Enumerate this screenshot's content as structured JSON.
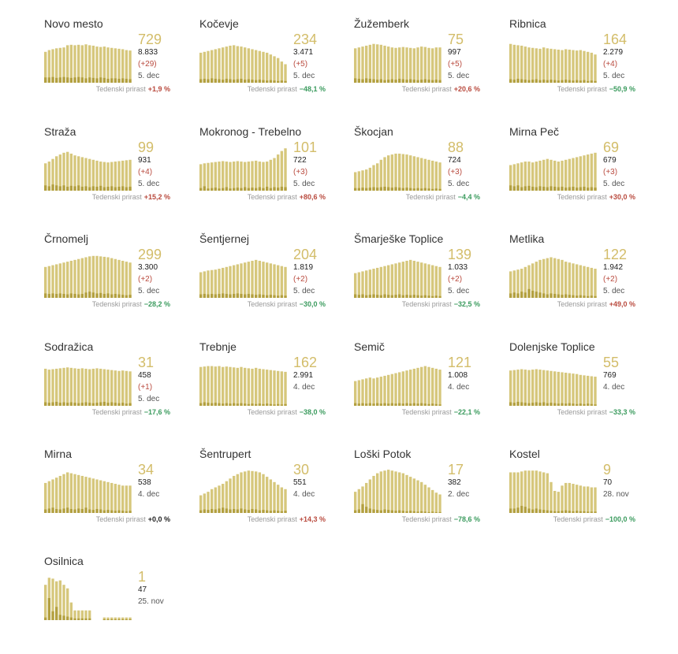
{
  "growth_label": "Tedenski prirast",
  "colors": {
    "bar": "#d6c77c",
    "bar_dark": "#b3a040",
    "number": "#d3bd6a",
    "up": "#b94a3e",
    "down": "#3b9b5e"
  },
  "chart_data": [
    {
      "type": "bar",
      "title": "Novo mesto",
      "active": "729",
      "total": "8.833",
      "delta": "(+29)",
      "date": "5. dec",
      "growth": "+1,9 %",
      "trend": "up",
      "values": [
        70,
        74,
        76,
        78,
        79,
        80,
        85,
        86,
        85,
        86,
        85,
        87,
        85,
        84,
        82,
        81,
        82,
        80,
        79,
        78,
        77,
        76,
        74,
        73
      ],
      "new": [
        12,
        12,
        13,
        11,
        12,
        13,
        12,
        11,
        12,
        13,
        12,
        10,
        12,
        11,
        10,
        12,
        11,
        9,
        10,
        10,
        9,
        10,
        9,
        8
      ]
    },
    {
      "type": "bar",
      "title": "Kočevje",
      "active": "234",
      "total": "3.471",
      "delta": "(+5)",
      "date": "5. dec",
      "growth": "−48,1 %",
      "trend": "down",
      "values": [
        68,
        70,
        72,
        74,
        76,
        78,
        80,
        82,
        84,
        85,
        83,
        82,
        80,
        78,
        76,
        74,
        72,
        70,
        68,
        64,
        60,
        56,
        48,
        42
      ],
      "new": [
        8,
        9,
        8,
        10,
        9,
        8,
        7,
        9,
        8,
        7,
        8,
        9,
        7,
        8,
        7,
        6,
        7,
        6,
        5,
        6,
        5,
        4,
        5,
        4
      ]
    },
    {
      "type": "bar",
      "title": "Žužemberk",
      "active": "75",
      "total": "997",
      "delta": "(+5)",
      "date": "5. dec",
      "growth": "+20,6 %",
      "trend": "up",
      "values": [
        78,
        80,
        82,
        84,
        86,
        88,
        87,
        86,
        84,
        82,
        80,
        79,
        80,
        81,
        80,
        79,
        78,
        80,
        82,
        81,
        79,
        78,
        80,
        80
      ],
      "new": [
        10,
        9,
        8,
        10,
        9,
        8,
        7,
        8,
        6,
        7,
        8,
        7,
        9,
        8,
        7,
        8,
        7,
        6,
        7,
        8,
        7,
        6,
        7,
        6
      ]
    },
    {
      "type": "bar",
      "title": "Ribnica",
      "active": "164",
      "total": "2.279",
      "delta": "(+4)",
      "date": "5. dec",
      "growth": "−50,9 %",
      "trend": "down",
      "values": [
        88,
        86,
        85,
        84,
        82,
        80,
        79,
        78,
        77,
        80,
        78,
        77,
        76,
        75,
        74,
        76,
        75,
        74,
        73,
        74,
        72,
        70,
        68,
        64
      ],
      "new": [
        8,
        7,
        9,
        8,
        7,
        6,
        7,
        8,
        6,
        7,
        6,
        7,
        6,
        5,
        6,
        7,
        6,
        5,
        6,
        5,
        6,
        4,
        5,
        4
      ]
    },
    {
      "type": "bar",
      "title": "Straža",
      "active": "99",
      "total": "931",
      "delta": "(+4)",
      "date": "5. dec",
      "growth": "+15,2 %",
      "trend": "up",
      "values": [
        62,
        66,
        72,
        78,
        82,
        86,
        88,
        84,
        80,
        78,
        76,
        74,
        72,
        70,
        68,
        66,
        65,
        64,
        65,
        66,
        67,
        68,
        69,
        70
      ],
      "new": [
        12,
        10,
        14,
        12,
        10,
        12,
        9,
        11,
        10,
        12,
        9,
        10,
        8,
        10,
        9,
        11,
        8,
        9,
        10,
        8,
        9,
        10,
        8,
        9
      ]
    },
    {
      "type": "bar",
      "title": "Mokronog - Trebelno",
      "active": "101",
      "total": "722",
      "delta": "(+3)",
      "date": "5. dec",
      "growth": "+80,6 %",
      "trend": "up",
      "values": [
        60,
        62,
        63,
        64,
        65,
        66,
        67,
        66,
        65,
        66,
        67,
        66,
        65,
        66,
        67,
        68,
        66,
        65,
        66,
        70,
        74,
        82,
        90,
        96
      ],
      "new": [
        6,
        10,
        5,
        6,
        7,
        5,
        6,
        8,
        5,
        6,
        7,
        6,
        8,
        6,
        7,
        6,
        8,
        6,
        9,
        6,
        8,
        7,
        9,
        8
      ]
    },
    {
      "type": "bar",
      "title": "Škocjan",
      "active": "88",
      "total": "724",
      "delta": "(+3)",
      "date": "5. dec",
      "growth": "−4,4 %",
      "trend": "down",
      "values": [
        42,
        44,
        46,
        48,
        52,
        58,
        62,
        70,
        76,
        80,
        82,
        84,
        84,
        83,
        82,
        80,
        78,
        76,
        74,
        72,
        70,
        68,
        66,
        64
      ],
      "new": [
        6,
        6,
        7,
        6,
        7,
        8,
        7,
        8,
        9,
        8,
        7,
        8,
        7,
        6,
        7,
        6,
        5,
        6,
        5,
        6,
        5,
        4,
        5,
        4
      ]
    },
    {
      "type": "bar",
      "title": "Mirna Peč",
      "active": "69",
      "total": "679",
      "delta": "(+3)",
      "date": "5. dec",
      "growth": "+30,0 %",
      "trend": "up",
      "values": [
        58,
        60,
        62,
        64,
        66,
        66,
        64,
        66,
        68,
        70,
        72,
        70,
        68,
        66,
        68,
        70,
        72,
        74,
        76,
        78,
        80,
        82,
        84,
        86
      ],
      "new": [
        12,
        10,
        12,
        8,
        10,
        11,
        9,
        8,
        10,
        9,
        8,
        10,
        9,
        8,
        9,
        7,
        8,
        9,
        7,
        8,
        9,
        7,
        8,
        7
      ]
    },
    {
      "type": "bar",
      "title": "Črnomelj",
      "active": "299",
      "total": "3.300",
      "delta": "(+2)",
      "date": "5. dec",
      "growth": "−28,2 %",
      "trend": "down",
      "values": [
        70,
        72,
        74,
        76,
        78,
        80,
        82,
        84,
        86,
        88,
        90,
        92,
        94,
        95,
        95,
        94,
        93,
        92,
        90,
        88,
        86,
        84,
        82,
        80
      ],
      "new": [
        10,
        9,
        10,
        9,
        10,
        9,
        8,
        10,
        9,
        8,
        9,
        12,
        14,
        12,
        10,
        11,
        9,
        10,
        8,
        9,
        8,
        7,
        6,
        7
      ]
    },
    {
      "type": "bar",
      "title": "Šentjernej",
      "active": "204",
      "total": "1.819",
      "delta": "(+2)",
      "date": "5. dec",
      "growth": "−30,0 %",
      "trend": "down",
      "values": [
        58,
        60,
        62,
        63,
        64,
        66,
        68,
        70,
        72,
        74,
        76,
        78,
        80,
        82,
        84,
        86,
        84,
        82,
        80,
        78,
        76,
        74,
        72,
        70
      ],
      "new": [
        8,
        9,
        8,
        9,
        8,
        9,
        10,
        9,
        8,
        9,
        10,
        9,
        8,
        9,
        8,
        7,
        8,
        7,
        6,
        7,
        6,
        5,
        6,
        5
      ]
    },
    {
      "type": "bar",
      "title": "Šmarješke Toplice",
      "active": "139",
      "total": "1.033",
      "delta": "(+2)",
      "date": "5. dec",
      "growth": "−32,5 %",
      "trend": "down",
      "values": [
        56,
        58,
        60,
        62,
        64,
        66,
        68,
        70,
        72,
        74,
        76,
        78,
        80,
        82,
        84,
        86,
        84,
        82,
        80,
        78,
        76,
        74,
        72,
        70
      ],
      "new": [
        8,
        7,
        8,
        6,
        7,
        8,
        7,
        6,
        8,
        7,
        6,
        7,
        8,
        6,
        7,
        6,
        7,
        6,
        5,
        6,
        5,
        4,
        5,
        4
      ]
    },
    {
      "type": "bar",
      "title": "Metlika",
      "active": "122",
      "total": "1.942",
      "delta": "(+2)",
      "date": "5. dec",
      "growth": "+49,0 %",
      "trend": "up",
      "values": [
        60,
        62,
        64,
        66,
        70,
        74,
        78,
        82,
        86,
        88,
        90,
        92,
        90,
        88,
        86,
        82,
        80,
        78,
        76,
        74,
        72,
        70,
        68,
        66
      ],
      "new": [
        10,
        12,
        10,
        14,
        12,
        20,
        16,
        14,
        12,
        10,
        8,
        10,
        9,
        8,
        7,
        8,
        7,
        6,
        5,
        6,
        5,
        4,
        5,
        4
      ]
    },
    {
      "type": "bar",
      "title": "Sodražica",
      "active": "31",
      "total": "458",
      "delta": "(+1)",
      "date": "5. dec",
      "growth": "−17,6 %",
      "trend": "down",
      "values": [
        84,
        82,
        83,
        84,
        85,
        86,
        87,
        86,
        85,
        84,
        85,
        84,
        83,
        84,
        85,
        84,
        83,
        82,
        81,
        80,
        79,
        80,
        79,
        78
      ],
      "new": [
        8,
        7,
        8,
        9,
        7,
        8,
        7,
        8,
        7,
        6,
        7,
        8,
        7,
        6,
        7,
        8,
        9,
        7,
        8,
        7,
        6,
        7,
        5,
        6
      ]
    },
    {
      "type": "bar",
      "title": "Trebnje",
      "active": "162",
      "total": "2.991",
      "delta": "",
      "date": "4. dec",
      "growth": "−38,0 %",
      "trend": "down",
      "values": [
        88,
        89,
        90,
        90,
        89,
        90,
        88,
        89,
        88,
        87,
        86,
        88,
        86,
        85,
        84,
        86,
        84,
        83,
        82,
        81,
        80,
        79,
        78,
        77
      ],
      "new": [
        6,
        8,
        7,
        6,
        7,
        6,
        5,
        6,
        5,
        6,
        5,
        6,
        5,
        4,
        5,
        4,
        5,
        4,
        5,
        4,
        3,
        4,
        3,
        4
      ]
    },
    {
      "type": "bar",
      "title": "Semič",
      "active": "121",
      "total": "1.008",
      "delta": "",
      "date": "4. dec",
      "growth": "−22,1 %",
      "trend": "down",
      "values": [
        56,
        58,
        60,
        62,
        64,
        62,
        64,
        66,
        68,
        70,
        72,
        74,
        76,
        78,
        80,
        82,
        84,
        86,
        88,
        90,
        88,
        86,
        84,
        82
      ],
      "new": [
        6,
        5,
        6,
        5,
        6,
        5,
        6,
        5,
        6,
        5,
        6,
        5,
        6,
        5,
        6,
        5,
        6,
        5,
        6,
        5,
        4,
        5,
        4,
        3
      ]
    },
    {
      "type": "bar",
      "title": "Dolenjske Toplice",
      "active": "55",
      "total": "769",
      "delta": "",
      "date": "4. dec",
      "growth": "−33,3 %",
      "trend": "down",
      "values": [
        80,
        81,
        82,
        83,
        82,
        81,
        82,
        83,
        82,
        81,
        80,
        79,
        78,
        77,
        76,
        75,
        74,
        73,
        72,
        70,
        69,
        68,
        67,
        66
      ],
      "new": [
        8,
        7,
        9,
        8,
        7,
        6,
        7,
        8,
        7,
        8,
        6,
        7,
        6,
        5,
        6,
        5,
        6,
        5,
        4,
        5,
        4,
        5,
        4,
        3
      ]
    },
    {
      "type": "bar",
      "title": "Mirna",
      "active": "34",
      "total": "538",
      "delta": "",
      "date": "4. dec",
      "growth": "+0,0 %",
      "trend": "zero",
      "values": [
        68,
        72,
        76,
        80,
        84,
        88,
        92,
        90,
        88,
        86,
        84,
        82,
        80,
        78,
        76,
        74,
        72,
        70,
        68,
        66,
        64,
        62,
        62,
        62
      ],
      "new": [
        8,
        10,
        12,
        9,
        8,
        10,
        12,
        9,
        8,
        10,
        9,
        12,
        8,
        7,
        9,
        8,
        6,
        7,
        6,
        5,
        6,
        5,
        4,
        5
      ]
    },
    {
      "type": "bar",
      "title": "Šentrupert",
      "active": "30",
      "total": "551",
      "delta": "",
      "date": "4. dec",
      "growth": "+14,3 %",
      "trend": "up",
      "values": [
        40,
        44,
        48,
        54,
        58,
        62,
        66,
        72,
        78,
        84,
        88,
        92,
        94,
        96,
        95,
        94,
        92,
        88,
        82,
        76,
        70,
        64,
        58,
        54
      ],
      "new": [
        6,
        8,
        7,
        9,
        8,
        10,
        12,
        10,
        8,
        9,
        8,
        10,
        8,
        7,
        9,
        8,
        6,
        7,
        6,
        5,
        6,
        5,
        4,
        5
      ]
    },
    {
      "type": "bar",
      "title": "Loški Potok",
      "active": "17",
      "total": "382",
      "delta": "",
      "date": "2. dec",
      "growth": "−78,6 %",
      "trend": "down",
      "values": [
        48,
        54,
        60,
        68,
        76,
        84,
        90,
        94,
        96,
        98,
        96,
        94,
        92,
        90,
        86,
        82,
        78,
        74,
        70,
        64,
        58,
        52,
        46,
        42
      ],
      "new": [
        6,
        8,
        20,
        14,
        10,
        8,
        7,
        6,
        8,
        7,
        6,
        5,
        6,
        5,
        4,
        5,
        4,
        3,
        4,
        3,
        2,
        3,
        2,
        2
      ]
    },
    {
      "type": "bar",
      "title": "Kostel",
      "active": "9",
      "total": "70",
      "delta": "",
      "date": "28. nov",
      "growth": "−100,0 %",
      "trend": "down",
      "values": [
        92,
        92,
        92,
        94,
        96,
        96,
        96,
        96,
        94,
        92,
        90,
        70,
        50,
        48,
        62,
        68,
        68,
        66,
        64,
        62,
        60,
        60,
        58,
        58
      ],
      "new": [
        10,
        10,
        12,
        16,
        14,
        10,
        8,
        10,
        8,
        7,
        6,
        5,
        4,
        4,
        5,
        6,
        5,
        4,
        5,
        4,
        4,
        3,
        3,
        3
      ]
    },
    {
      "type": "bar",
      "title": "Osilnica",
      "active": "1",
      "total": "47",
      "delta": "",
      "date": "25. nov",
      "growth": "",
      "trend": "none",
      "values": [
        80,
        96,
        94,
        88,
        90,
        80,
        72,
        40,
        22,
        22,
        22,
        22,
        22,
        0,
        0,
        0,
        6,
        6,
        6,
        6,
        6,
        6,
        6,
        6
      ],
      "new": [
        6,
        50,
        20,
        30,
        12,
        10,
        8,
        6,
        4,
        4,
        4,
        4,
        4,
        0,
        0,
        0,
        2,
        2,
        2,
        2,
        2,
        2,
        2,
        2
      ]
    }
  ]
}
